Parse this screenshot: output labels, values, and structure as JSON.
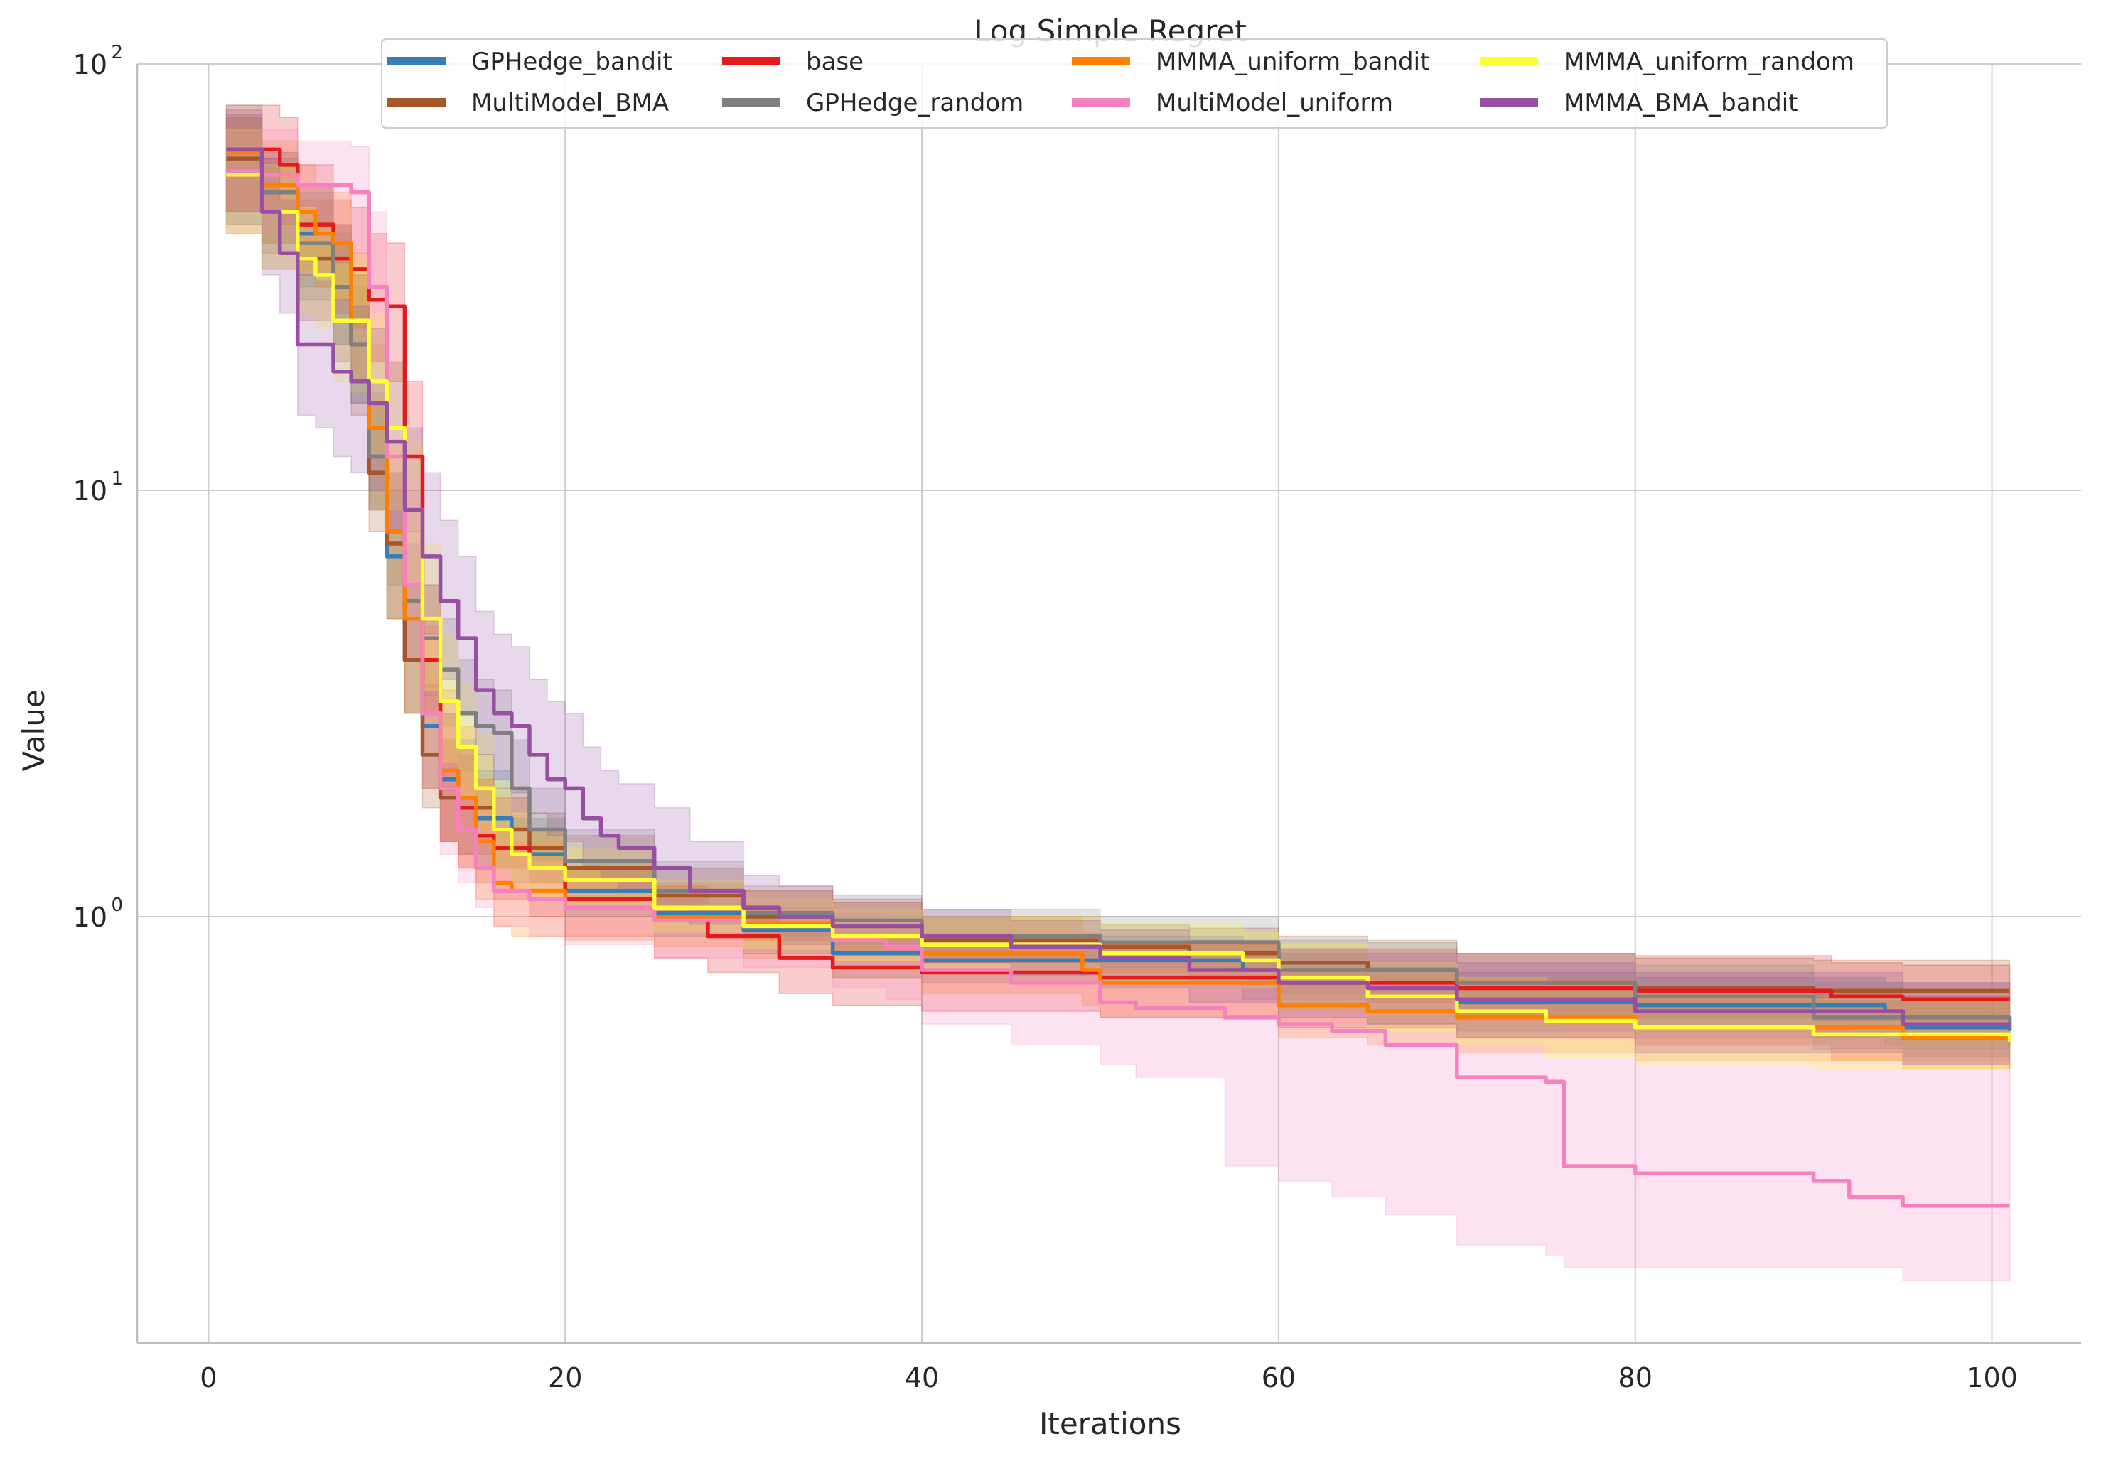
{
  "chart_data": {
    "type": "line",
    "title": "Log Simple Regret",
    "xlabel": "Iterations",
    "ylabel": "Value",
    "xlim": [
      -4,
      105
    ],
    "ylim": [
      0.1,
      100
    ],
    "yscale": "log",
    "x_ticks": [
      0,
      20,
      40,
      60,
      80,
      100
    ],
    "x_tick_labels": [
      "0",
      "20",
      "40",
      "60",
      "80",
      "100"
    ],
    "y_ticks": [
      1,
      10,
      100
    ],
    "y_tick_labels": [
      "10",
      "10",
      "10"
    ],
    "y_tick_exponents": [
      "0",
      "1",
      "2"
    ],
    "grid": true,
    "legend_position": "top-center",
    "series": [
      {
        "name": "GPHedge_bandit",
        "color": "#377eb8",
        "x": [
          1,
          3,
          5,
          7,
          8,
          9,
          10,
          11,
          12,
          13,
          14,
          15,
          17,
          20,
          25,
          30,
          35,
          40,
          50,
          58,
          60,
          65,
          70,
          80,
          94,
          95,
          101
        ],
        "y": [
          62,
          50,
          40,
          30,
          22,
          12,
          7,
          4,
          2.8,
          2.1,
          1.9,
          1.7,
          1.4,
          1.15,
          1.02,
          0.93,
          0.82,
          0.79,
          0.79,
          0.75,
          0.7,
          0.65,
          0.63,
          0.62,
          0.6,
          0.55,
          0.54
        ],
        "lower": [
          42,
          38,
          30,
          22,
          16,
          9,
          5,
          3,
          2,
          1.5,
          1.4,
          1.3,
          1.2,
          1.0,
          0.9,
          0.82,
          0.72,
          0.7,
          0.7,
          0.64,
          0.6,
          0.56,
          0.54,
          0.52,
          0.5,
          0.47,
          0.46
        ],
        "upper": [
          75,
          62,
          52,
          42,
          32,
          18,
          10,
          6,
          4,
          3,
          2.6,
          2.2,
          1.7,
          1.35,
          1.15,
          1.05,
          0.95,
          0.9,
          0.9,
          0.86,
          0.82,
          0.76,
          0.74,
          0.72,
          0.7,
          0.65,
          0.64
        ]
      },
      {
        "name": "MultiModel_BMA",
        "color": "#a65628",
        "x": [
          1,
          3,
          5,
          7,
          8,
          9,
          10,
          11,
          12,
          13,
          14,
          16,
          18,
          20,
          25,
          30,
          35,
          40,
          50,
          55,
          60,
          65,
          70,
          80,
          90,
          101
        ],
        "y": [
          60,
          45,
          35,
          30,
          22,
          11,
          7.5,
          4,
          2.4,
          1.9,
          1.8,
          1.6,
          1.45,
          1.3,
          1.12,
          1.0,
          0.95,
          0.88,
          0.85,
          0.82,
          0.78,
          0.75,
          0.7,
          0.68,
          0.67,
          0.67
        ],
        "lower": [
          40,
          33,
          25,
          20,
          15,
          8,
          5,
          3,
          1.8,
          1.5,
          1.4,
          1.3,
          1.2,
          1.1,
          0.98,
          0.88,
          0.83,
          0.78,
          0.74,
          0.7,
          0.66,
          0.63,
          0.59,
          0.58,
          0.57,
          0.57
        ],
        "upper": [
          78,
          60,
          48,
          42,
          32,
          16,
          11,
          6,
          3.5,
          2.6,
          2.4,
          2.0,
          1.75,
          1.55,
          1.3,
          1.15,
          1.08,
          1.0,
          0.96,
          0.94,
          0.9,
          0.87,
          0.82,
          0.8,
          0.79,
          0.79
        ]
      },
      {
        "name": "base",
        "color": "#e41a1c",
        "x": [
          1,
          3,
          4,
          5,
          7,
          8,
          9,
          10,
          11,
          12,
          13,
          14,
          15,
          16,
          18,
          20,
          25,
          28,
          32,
          35,
          40,
          50,
          60,
          70,
          80,
          91,
          95,
          101
        ],
        "y": [
          63,
          63,
          58,
          42,
          35,
          33,
          28,
          27,
          12,
          4,
          2,
          1.8,
          1.55,
          1.45,
          1.3,
          1.1,
          1.0,
          0.9,
          0.8,
          0.76,
          0.74,
          0.72,
          0.7,
          0.68,
          0.67,
          0.65,
          0.64,
          0.64
        ],
        "lower": [
          45,
          45,
          42,
          32,
          26,
          24,
          20,
          18,
          8,
          3,
          1.5,
          1.3,
          1.2,
          1.1,
          1.0,
          0.9,
          0.8,
          0.74,
          0.66,
          0.62,
          0.6,
          0.58,
          0.55,
          0.52,
          0.5,
          0.46,
          0.45,
          0.44
        ],
        "upper": [
          80,
          80,
          75,
          58,
          48,
          46,
          40,
          38,
          18,
          6,
          3,
          2.5,
          2.1,
          1.9,
          1.6,
          1.3,
          1.18,
          1.06,
          0.95,
          0.9,
          0.88,
          0.86,
          0.84,
          0.82,
          0.81,
          0.78,
          0.77,
          0.77
        ]
      },
      {
        "name": "GPHedge_random",
        "color": "#808080",
        "x": [
          1,
          3,
          5,
          7,
          8,
          9,
          10,
          11,
          12,
          13,
          14,
          15,
          16,
          17,
          18,
          20,
          25,
          30,
          35,
          40,
          50,
          60,
          70,
          80,
          90,
          101
        ],
        "y": [
          62,
          50,
          38,
          30,
          22,
          12,
          8,
          5.5,
          4.5,
          3.8,
          3,
          2.8,
          2.7,
          2,
          1.6,
          1.35,
          1.15,
          1.02,
          0.98,
          0.9,
          0.87,
          0.75,
          0.7,
          0.65,
          0.58,
          0.56
        ],
        "lower": [
          42,
          36,
          28,
          22,
          16,
          9,
          6,
          4,
          3.3,
          2.8,
          2.2,
          2.1,
          2,
          1.6,
          1.35,
          1.15,
          1.0,
          0.9,
          0.86,
          0.79,
          0.76,
          0.64,
          0.6,
          0.55,
          0.49,
          0.47
        ],
        "upper": [
          80,
          62,
          50,
          40,
          30,
          17,
          11,
          7.5,
          6,
          5,
          4,
          3.6,
          3.4,
          2.6,
          2.0,
          1.6,
          1.35,
          1.18,
          1.12,
          1.04,
          1.0,
          0.88,
          0.82,
          0.77,
          0.7,
          0.67
        ]
      },
      {
        "name": "MMMA_uniform_bandit",
        "color": "#ff7f00",
        "x": [
          1,
          3,
          5,
          6,
          7,
          8,
          9,
          10,
          11,
          12,
          13,
          14,
          15,
          16,
          17,
          20,
          25,
          30,
          35,
          40,
          49,
          50,
          60,
          65,
          70,
          80,
          95,
          101
        ],
        "y": [
          62,
          52,
          45,
          40,
          38,
          25,
          14,
          8,
          5,
          3,
          2.2,
          1.9,
          1.5,
          1.2,
          1.15,
          1.05,
          1.0,
          0.96,
          0.9,
          0.82,
          0.75,
          0.7,
          0.62,
          0.6,
          0.58,
          0.55,
          0.52,
          0.51
        ],
        "lower": [
          45,
          38,
          33,
          30,
          28,
          18,
          9,
          5,
          3,
          2,
          1.5,
          1.3,
          1.1,
          0.95,
          0.9,
          0.88,
          0.85,
          0.8,
          0.72,
          0.66,
          0.62,
          0.58,
          0.52,
          0.5,
          0.48,
          0.46,
          0.44,
          0.43
        ],
        "upper": [
          75,
          66,
          58,
          52,
          50,
          36,
          22,
          13,
          8,
          4.8,
          3.4,
          2.8,
          2.1,
          1.6,
          1.5,
          1.3,
          1.2,
          1.15,
          1.08,
          1.0,
          0.92,
          0.86,
          0.76,
          0.73,
          0.71,
          0.68,
          0.65,
          0.64
        ]
      },
      {
        "name": "MultiModel_uniform",
        "color": "#f781bf",
        "x": [
          1,
          3,
          5,
          8,
          9,
          10,
          11,
          12,
          13,
          14,
          15,
          16,
          18,
          20,
          25,
          30,
          35,
          38,
          40,
          45,
          50,
          52,
          57,
          60,
          63,
          66,
          70,
          75,
          76,
          79,
          80,
          90,
          92,
          95,
          101
        ],
        "y": [
          56,
          55,
          52,
          50,
          30,
          12,
          6,
          3,
          2,
          1.6,
          1.3,
          1.15,
          1.1,
          1.05,
          0.98,
          0.95,
          0.88,
          0.85,
          0.75,
          0.7,
          0.63,
          0.61,
          0.58,
          0.56,
          0.54,
          0.5,
          0.42,
          0.41,
          0.26,
          0.26,
          0.25,
          0.24,
          0.22,
          0.21,
          0.21
        ],
        "lower": [
          40,
          40,
          38,
          36,
          20,
          8,
          4,
          2,
          1.4,
          1.2,
          1.05,
          0.95,
          0.9,
          0.86,
          0.8,
          0.76,
          0.68,
          0.64,
          0.56,
          0.5,
          0.45,
          0.42,
          0.26,
          0.24,
          0.22,
          0.2,
          0.17,
          0.16,
          0.15,
          0.15,
          0.15,
          0.15,
          0.15,
          0.14,
          0.14
        ],
        "upper": [
          70,
          70,
          66,
          64,
          45,
          20,
          10,
          5,
          3.2,
          2.4,
          1.8,
          1.5,
          1.35,
          1.25,
          1.15,
          1.1,
          1.02,
          0.98,
          0.92,
          0.86,
          0.8,
          0.78,
          0.75,
          0.73,
          0.71,
          0.68,
          0.62,
          0.6,
          0.56,
          0.56,
          0.55,
          0.54,
          0.52,
          0.5,
          0.5
        ]
      },
      {
        "name": "MMMA_uniform_random",
        "color": "#ffff33",
        "x": [
          1,
          3,
          5,
          6,
          7,
          8,
          9,
          10,
          11,
          12,
          13,
          14,
          15,
          16,
          17,
          18,
          20,
          25,
          30,
          35,
          40,
          50,
          58,
          60,
          65,
          70,
          75,
          80,
          90,
          100,
          101
        ],
        "y": [
          55,
          45,
          35,
          32,
          25,
          25,
          18,
          14,
          9,
          5,
          3.2,
          2.5,
          2,
          1.6,
          1.4,
          1.3,
          1.22,
          1.05,
          0.95,
          0.9,
          0.86,
          0.82,
          0.79,
          0.72,
          0.65,
          0.6,
          0.57,
          0.55,
          0.53,
          0.53,
          0.51
        ],
        "lower": [
          40,
          33,
          26,
          24,
          18,
          17,
          12,
          9,
          6,
          3.4,
          2.3,
          1.9,
          1.55,
          1.3,
          1.15,
          1.1,
          1.04,
          0.92,
          0.84,
          0.79,
          0.75,
          0.71,
          0.68,
          0.6,
          0.54,
          0.5,
          0.47,
          0.45,
          0.44,
          0.44,
          0.43
        ],
        "upper": [
          70,
          58,
          46,
          42,
          34,
          34,
          26,
          20,
          13,
          7.5,
          4.6,
          3.5,
          2.7,
          2.1,
          1.75,
          1.6,
          1.45,
          1.22,
          1.1,
          1.04,
          1.0,
          0.96,
          0.92,
          0.86,
          0.78,
          0.72,
          0.69,
          0.66,
          0.64,
          0.64,
          0.62
        ]
      },
      {
        "name": "MMMA_BMA_bandit",
        "color": "#984ea3",
        "x": [
          1,
          3,
          4,
          5,
          6,
          7,
          8,
          9,
          10,
          11,
          12,
          13,
          14,
          15,
          16,
          17,
          18,
          19,
          20,
          21,
          22,
          23,
          25,
          27,
          30,
          32,
          35,
          40,
          45,
          50,
          55,
          60,
          65,
          70,
          80,
          95,
          101
        ],
        "y": [
          63,
          45,
          36,
          22,
          22,
          19,
          18,
          16,
          13,
          9,
          7,
          5.5,
          4.5,
          3.4,
          3,
          2.8,
          2.4,
          2.1,
          2,
          1.7,
          1.55,
          1.45,
          1.3,
          1.15,
          1.05,
          1.0,
          0.95,
          0.9,
          0.85,
          0.8,
          0.75,
          0.7,
          0.68,
          0.64,
          0.6,
          0.56,
          0.55
        ],
        "lower": [
          45,
          32,
          26,
          15,
          14,
          12,
          11,
          10,
          8,
          6,
          4.6,
          3.6,
          3,
          2.4,
          2.1,
          1.95,
          1.75,
          1.55,
          1.5,
          1.32,
          1.22,
          1.15,
          1.05,
          0.96,
          0.9,
          0.86,
          0.82,
          0.78,
          0.73,
          0.68,
          0.63,
          0.58,
          0.56,
          0.52,
          0.48,
          0.45,
          0.44
        ],
        "upper": [
          76,
          60,
          48,
          32,
          31,
          28,
          27,
          24,
          20,
          14,
          11,
          8.5,
          7,
          5.2,
          4.6,
          4.3,
          3.6,
          3.2,
          3.0,
          2.5,
          2.2,
          2.05,
          1.8,
          1.5,
          1.25,
          1.18,
          1.1,
          1.04,
          0.98,
          0.93,
          0.88,
          0.84,
          0.82,
          0.78,
          0.74,
          0.7,
          0.69
        ]
      }
    ]
  }
}
